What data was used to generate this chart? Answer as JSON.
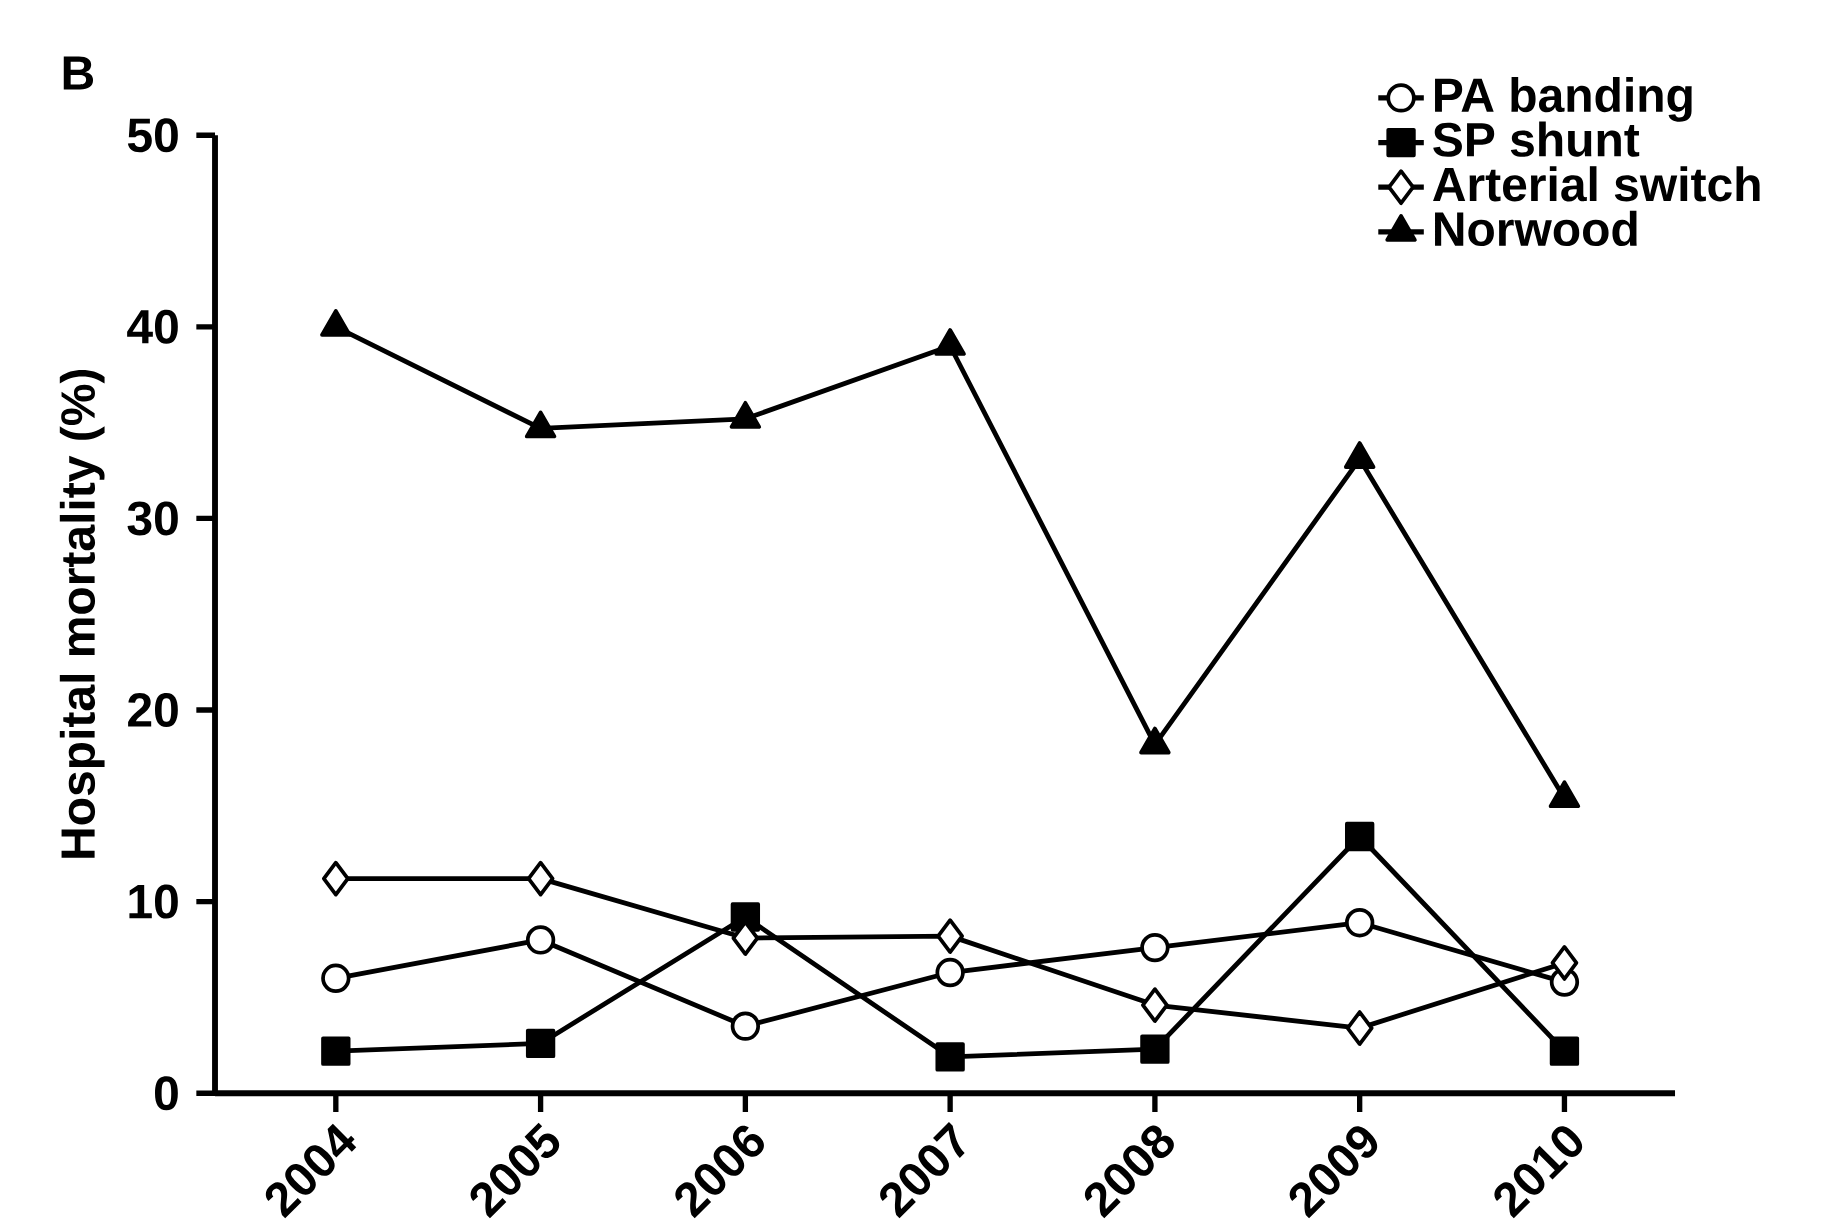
{
  "chart_data": {
    "type": "line",
    "ylabel": "Hospital mortality (%)",
    "annotations": [
      "B"
    ],
    "categories": [
      "2004",
      "2005",
      "2006",
      "2007",
      "2008",
      "2009",
      "2010"
    ],
    "series": [
      {
        "name": "PA banding",
        "color": "#000000",
        "marker": "circle",
        "values": [
          6.0,
          8.0,
          3.5,
          6.3,
          7.6,
          8.9,
          5.8
        ]
      },
      {
        "name": "SP shunt",
        "color": "#000000",
        "marker": "square",
        "values": [
          2.2,
          2.6,
          9.2,
          1.9,
          2.3,
          13.4,
          2.2
        ]
      },
      {
        "name": "Arterial switch",
        "color": "#000000",
        "marker": "diamond",
        "values": [
          11.2,
          11.2,
          8.1,
          8.2,
          4.6,
          3.4,
          6.8
        ]
      },
      {
        "name": "Norwood",
        "color": "#000000",
        "marker": "triangle",
        "values": [
          40,
          34.7,
          35.2,
          39,
          18.2,
          33.1,
          15.4
        ]
      }
    ],
    "ylim": [
      0,
      50
    ],
    "yticks": [
      0,
      10,
      20,
      30,
      40,
      50
    ],
    "grid": false,
    "legend": "top right",
    "line_style": "solid"
  }
}
